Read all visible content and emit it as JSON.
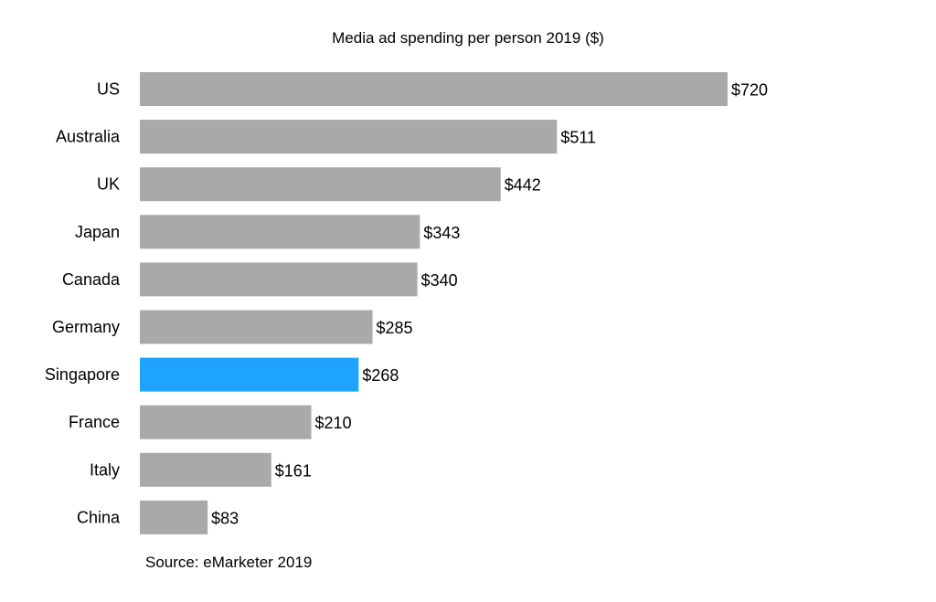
{
  "chart_data": {
    "type": "bar",
    "orientation": "horizontal",
    "title": "Media ad spending per person 2019 ($)",
    "categories": [
      "US",
      "Australia",
      "UK",
      "Japan",
      "Canada",
      "Germany",
      "Singapore",
      "France",
      "Italy",
      "China"
    ],
    "values": [
      720,
      511,
      442,
      343,
      340,
      285,
      268,
      210,
      161,
      83
    ],
    "value_labels": [
      "$720",
      "$511",
      "$442",
      "$343",
      "$340",
      "$285",
      "$268",
      "$210",
      "$161",
      "$83"
    ],
    "highlight": "Singapore",
    "xlim": [
      0,
      720
    ],
    "grid": false,
    "source": "Source: eMarketer 2019",
    "colors": {
      "bar": "#a9a9a9",
      "highlight": "#1ea4ff"
    }
  }
}
